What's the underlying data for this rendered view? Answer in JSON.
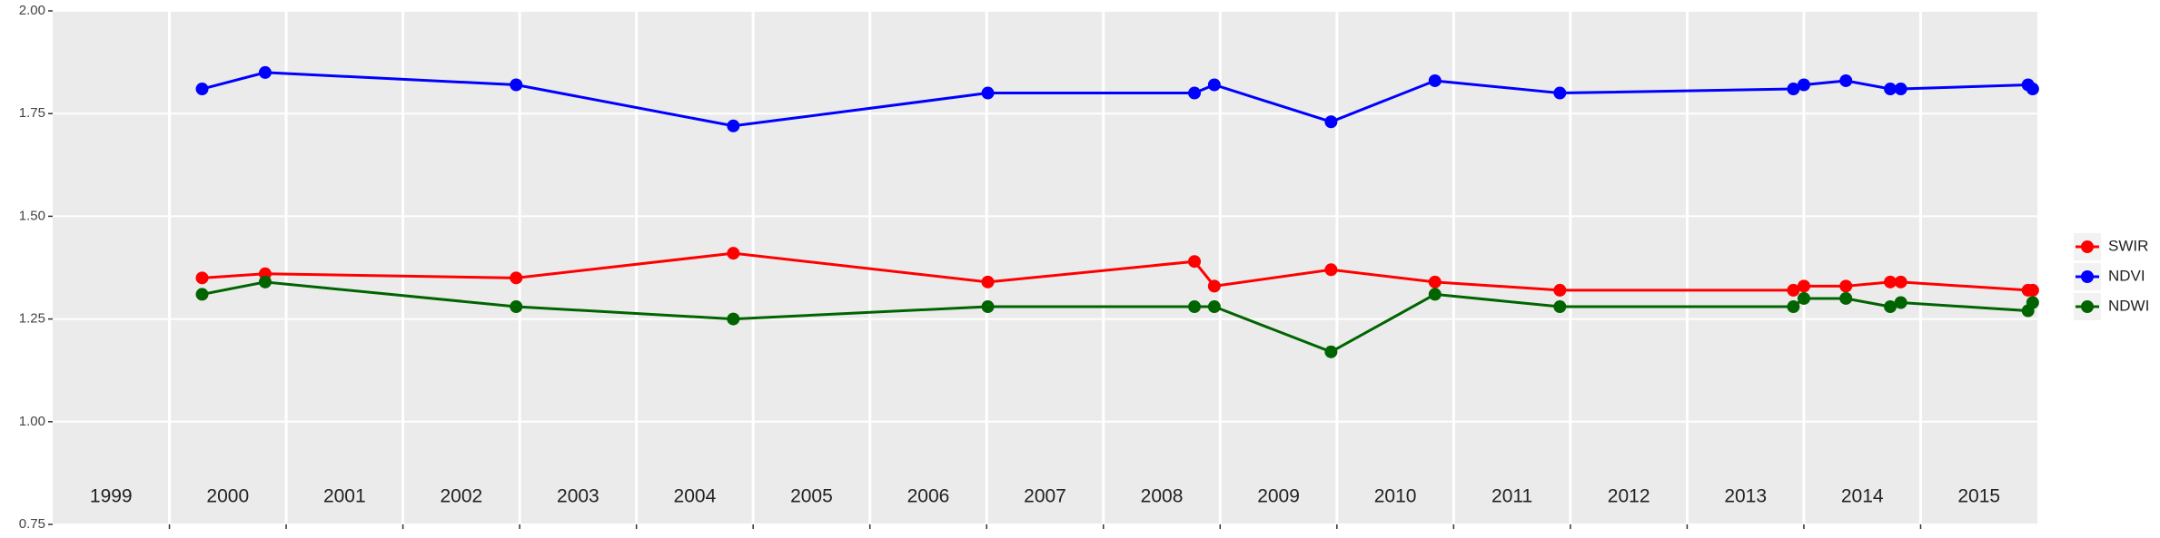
{
  "chart_data": {
    "type": "line",
    "x": [
      2000.28,
      2000.82,
      2002.97,
      2004.83,
      2007.01,
      2008.78,
      2008.95,
      2009.95,
      2010.84,
      2011.91,
      2013.91,
      2014.0,
      2014.36,
      2014.74,
      2014.83,
      2015.92,
      2015.96
    ],
    "series": [
      {
        "name": "SWIR",
        "color": "#ff0000",
        "values": [
          1.35,
          1.36,
          1.35,
          1.41,
          1.34,
          1.39,
          1.33,
          1.37,
          1.34,
          1.32,
          1.32,
          1.33,
          1.33,
          1.34,
          1.34,
          1.32,
          1.32
        ]
      },
      {
        "name": "NDVI",
        "color": "#0000ff",
        "values": [
          1.81,
          1.85,
          1.82,
          1.72,
          1.8,
          1.8,
          1.82,
          1.73,
          1.83,
          1.8,
          1.81,
          1.82,
          1.83,
          1.81,
          1.81,
          1.82,
          1.81
        ]
      },
      {
        "name": "NDWI",
        "color": "#006400",
        "values": [
          1.31,
          1.34,
          1.28,
          1.25,
          1.28,
          1.28,
          1.28,
          1.17,
          1.31,
          1.28,
          1.28,
          1.3,
          1.3,
          1.28,
          1.29,
          1.27,
          1.29
        ]
      }
    ],
    "xlim": [
      1999,
      2016
    ],
    "xticks": [
      {
        "value": 1999.5,
        "label": "1999"
      },
      {
        "value": 2000.5,
        "label": "2000"
      },
      {
        "value": 2001.5,
        "label": "2001"
      },
      {
        "value": 2002.5,
        "label": "2002"
      },
      {
        "value": 2003.5,
        "label": "2003"
      },
      {
        "value": 2004.5,
        "label": "2004"
      },
      {
        "value": 2005.5,
        "label": "2005"
      },
      {
        "value": 2006.5,
        "label": "2006"
      },
      {
        "value": 2007.5,
        "label": "2007"
      },
      {
        "value": 2008.5,
        "label": "2008"
      },
      {
        "value": 2009.5,
        "label": "2009"
      },
      {
        "value": 2010.5,
        "label": "2010"
      },
      {
        "value": 2011.5,
        "label": "2011"
      },
      {
        "value": 2012.5,
        "label": "2012"
      },
      {
        "value": 2013.5,
        "label": "2013"
      },
      {
        "value": 2014.5,
        "label": "2014"
      },
      {
        "value": 2015.5,
        "label": "2015"
      }
    ],
    "x_grid": [
      2000,
      2001,
      2002,
      2003,
      2004,
      2005,
      2006,
      2007,
      2008,
      2009,
      2010,
      2011,
      2012,
      2013,
      2014,
      2015
    ],
    "ylim": [
      0.75,
      2.0
    ],
    "yticks": [
      {
        "value": 0.75,
        "label": "0.75"
      },
      {
        "value": 1.0,
        "label": "1.00"
      },
      {
        "value": 1.25,
        "label": "1.25"
      },
      {
        "value": 1.5,
        "label": "1.50"
      },
      {
        "value": 1.75,
        "label": "1.75"
      },
      {
        "value": 2.0,
        "label": "2.00"
      }
    ],
    "grid": true
  }
}
